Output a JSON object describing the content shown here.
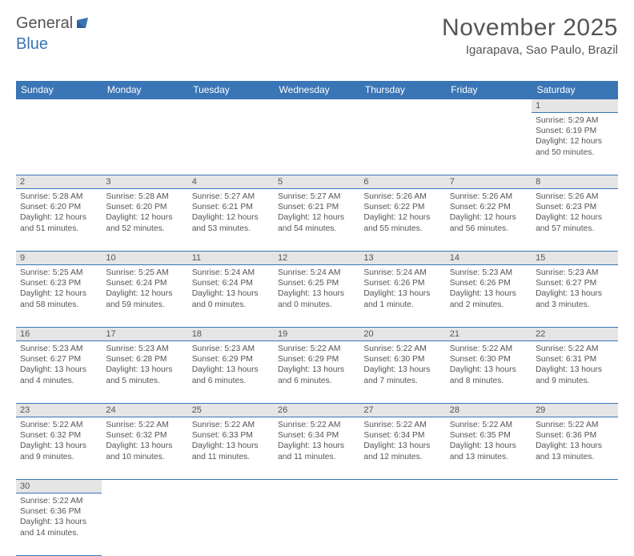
{
  "logo": {
    "text1": "General",
    "text2": "Blue",
    "color1": "#555555",
    "color2": "#3a75b5"
  },
  "title": "November 2025",
  "location": "Igarapava, Sao Paulo, Brazil",
  "colors": {
    "header_bg": "#3a75b5",
    "header_text": "#ffffff",
    "daynum_bg": "#e5e5e5",
    "border": "#3a75b5",
    "text": "#555555"
  },
  "weekdays": [
    "Sunday",
    "Monday",
    "Tuesday",
    "Wednesday",
    "Thursday",
    "Friday",
    "Saturday"
  ],
  "weeks": [
    [
      null,
      null,
      null,
      null,
      null,
      null,
      {
        "n": "1",
        "sunrise": "5:29 AM",
        "sunset": "6:19 PM",
        "daylight": "12 hours and 50 minutes."
      }
    ],
    [
      {
        "n": "2",
        "sunrise": "5:28 AM",
        "sunset": "6:20 PM",
        "daylight": "12 hours and 51 minutes."
      },
      {
        "n": "3",
        "sunrise": "5:28 AM",
        "sunset": "6:20 PM",
        "daylight": "12 hours and 52 minutes."
      },
      {
        "n": "4",
        "sunrise": "5:27 AM",
        "sunset": "6:21 PM",
        "daylight": "12 hours and 53 minutes."
      },
      {
        "n": "5",
        "sunrise": "5:27 AM",
        "sunset": "6:21 PM",
        "daylight": "12 hours and 54 minutes."
      },
      {
        "n": "6",
        "sunrise": "5:26 AM",
        "sunset": "6:22 PM",
        "daylight": "12 hours and 55 minutes."
      },
      {
        "n": "7",
        "sunrise": "5:26 AM",
        "sunset": "6:22 PM",
        "daylight": "12 hours and 56 minutes."
      },
      {
        "n": "8",
        "sunrise": "5:26 AM",
        "sunset": "6:23 PM",
        "daylight": "12 hours and 57 minutes."
      }
    ],
    [
      {
        "n": "9",
        "sunrise": "5:25 AM",
        "sunset": "6:23 PM",
        "daylight": "12 hours and 58 minutes."
      },
      {
        "n": "10",
        "sunrise": "5:25 AM",
        "sunset": "6:24 PM",
        "daylight": "12 hours and 59 minutes."
      },
      {
        "n": "11",
        "sunrise": "5:24 AM",
        "sunset": "6:24 PM",
        "daylight": "13 hours and 0 minutes."
      },
      {
        "n": "12",
        "sunrise": "5:24 AM",
        "sunset": "6:25 PM",
        "daylight": "13 hours and 0 minutes."
      },
      {
        "n": "13",
        "sunrise": "5:24 AM",
        "sunset": "6:26 PM",
        "daylight": "13 hours and 1 minute."
      },
      {
        "n": "14",
        "sunrise": "5:23 AM",
        "sunset": "6:26 PM",
        "daylight": "13 hours and 2 minutes."
      },
      {
        "n": "15",
        "sunrise": "5:23 AM",
        "sunset": "6:27 PM",
        "daylight": "13 hours and 3 minutes."
      }
    ],
    [
      {
        "n": "16",
        "sunrise": "5:23 AM",
        "sunset": "6:27 PM",
        "daylight": "13 hours and 4 minutes."
      },
      {
        "n": "17",
        "sunrise": "5:23 AM",
        "sunset": "6:28 PM",
        "daylight": "13 hours and 5 minutes."
      },
      {
        "n": "18",
        "sunrise": "5:23 AM",
        "sunset": "6:29 PM",
        "daylight": "13 hours and 6 minutes."
      },
      {
        "n": "19",
        "sunrise": "5:22 AM",
        "sunset": "6:29 PM",
        "daylight": "13 hours and 6 minutes."
      },
      {
        "n": "20",
        "sunrise": "5:22 AM",
        "sunset": "6:30 PM",
        "daylight": "13 hours and 7 minutes."
      },
      {
        "n": "21",
        "sunrise": "5:22 AM",
        "sunset": "6:30 PM",
        "daylight": "13 hours and 8 minutes."
      },
      {
        "n": "22",
        "sunrise": "5:22 AM",
        "sunset": "6:31 PM",
        "daylight": "13 hours and 9 minutes."
      }
    ],
    [
      {
        "n": "23",
        "sunrise": "5:22 AM",
        "sunset": "6:32 PM",
        "daylight": "13 hours and 9 minutes."
      },
      {
        "n": "24",
        "sunrise": "5:22 AM",
        "sunset": "6:32 PM",
        "daylight": "13 hours and 10 minutes."
      },
      {
        "n": "25",
        "sunrise": "5:22 AM",
        "sunset": "6:33 PM",
        "daylight": "13 hours and 11 minutes."
      },
      {
        "n": "26",
        "sunrise": "5:22 AM",
        "sunset": "6:34 PM",
        "daylight": "13 hours and 11 minutes."
      },
      {
        "n": "27",
        "sunrise": "5:22 AM",
        "sunset": "6:34 PM",
        "daylight": "13 hours and 12 minutes."
      },
      {
        "n": "28",
        "sunrise": "5:22 AM",
        "sunset": "6:35 PM",
        "daylight": "13 hours and 13 minutes."
      },
      {
        "n": "29",
        "sunrise": "5:22 AM",
        "sunset": "6:36 PM",
        "daylight": "13 hours and 13 minutes."
      }
    ],
    [
      {
        "n": "30",
        "sunrise": "5:22 AM",
        "sunset": "6:36 PM",
        "daylight": "13 hours and 14 minutes."
      },
      null,
      null,
      null,
      null,
      null,
      null
    ]
  ],
  "labels": {
    "sunrise": "Sunrise:",
    "sunset": "Sunset:",
    "daylight": "Daylight:"
  }
}
